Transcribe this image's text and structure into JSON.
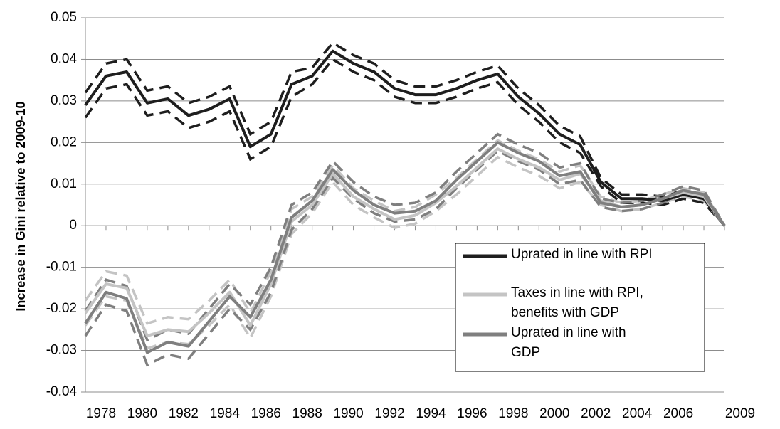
{
  "chart_data": {
    "type": "line",
    "y_label": "Increase in Gini relative to 2009-10",
    "categories": [
      1978,
      null,
      1980,
      null,
      1982,
      null,
      1984,
      null,
      1986,
      null,
      1988,
      null,
      1990,
      null,
      1992,
      null,
      1994,
      null,
      1996,
      null,
      1998,
      null,
      2000,
      null,
      2002,
      null,
      2004,
      null,
      2006,
      null,
      null,
      2009
    ],
    "ylim": [
      -0.04,
      0.05
    ],
    "yticks": [
      -0.04,
      -0.03,
      -0.02,
      -0.01,
      0,
      0.01,
      0.02,
      0.03,
      0.04,
      0.05
    ],
    "grid": true,
    "legend": "lower right",
    "series": [
      {
        "name": "Uprated in line with RPI",
        "color": "#1e1e1e",
        "values": [
          0.029,
          0.036,
          0.037,
          0.0295,
          0.0305,
          0.0265,
          0.028,
          0.0305,
          0.019,
          0.022,
          0.034,
          0.036,
          0.042,
          0.039,
          0.037,
          0.033,
          0.0315,
          0.0315,
          0.033,
          0.035,
          0.0365,
          0.031,
          0.027,
          0.022,
          0.0195,
          0.0105,
          0.0065,
          0.0065,
          0.006,
          0.0075,
          0.0065,
          0
        ],
        "lower": [
          0.026,
          0.033,
          0.034,
          0.0265,
          0.0275,
          0.0235,
          0.025,
          0.0275,
          0.016,
          0.019,
          0.031,
          0.034,
          0.04,
          0.037,
          0.035,
          0.031,
          0.0295,
          0.0295,
          0.031,
          0.033,
          0.0345,
          0.029,
          0.025,
          0.02,
          0.0175,
          0.0095,
          0.0055,
          0.0055,
          0.005,
          0.0065,
          0.0055,
          0
        ],
        "upper": [
          0.032,
          0.039,
          0.04,
          0.0325,
          0.0335,
          0.0295,
          0.031,
          0.0335,
          0.022,
          0.025,
          0.037,
          0.038,
          0.044,
          0.041,
          0.039,
          0.035,
          0.0335,
          0.0335,
          0.035,
          0.037,
          0.0385,
          0.033,
          0.029,
          0.024,
          0.0215,
          0.0115,
          0.0075,
          0.0075,
          0.007,
          0.0085,
          0.0075,
          0
        ]
      },
      {
        "name": "Taxes in line with RPI,\nbenefits with GDP",
        "color": "#c4c4c4",
        "values": [
          -0.021,
          -0.014,
          -0.015,
          -0.0265,
          -0.025,
          -0.0255,
          -0.021,
          -0.016,
          -0.024,
          -0.014,
          0.001,
          0.005,
          0.0125,
          0.007,
          0.004,
          0.0015,
          0.0025,
          0.0055,
          0.0095,
          0.014,
          0.0185,
          0.016,
          0.014,
          0.011,
          0.0125,
          0.006,
          0.0045,
          0.005,
          0.0065,
          0.008,
          0.007,
          0
        ],
        "lower": [
          -0.024,
          -0.017,
          -0.018,
          -0.0295,
          -0.028,
          -0.0285,
          -0.024,
          -0.019,
          -0.027,
          -0.017,
          -0.002,
          0.003,
          0.0105,
          0.005,
          0.002,
          -0.0005,
          0.0005,
          0.0035,
          0.0075,
          0.012,
          0.0165,
          0.014,
          0.012,
          0.009,
          0.0105,
          0.005,
          0.0035,
          0.004,
          0.0055,
          0.007,
          0.006,
          0
        ],
        "upper": [
          -0.018,
          -0.011,
          -0.012,
          -0.0235,
          -0.022,
          -0.0225,
          -0.018,
          -0.013,
          -0.021,
          -0.011,
          0.004,
          0.007,
          0.0145,
          0.009,
          0.006,
          0.0035,
          0.0045,
          0.0075,
          0.0115,
          0.016,
          0.0205,
          0.018,
          0.016,
          0.013,
          0.0145,
          0.007,
          0.0055,
          0.006,
          0.0075,
          0.009,
          0.008,
          0
        ]
      },
      {
        "name": "Uprated in line with\nGDP",
        "color": "#7f7f7f",
        "values": [
          -0.0235,
          -0.016,
          -0.0175,
          -0.0305,
          -0.028,
          -0.029,
          -0.023,
          -0.017,
          -0.022,
          -0.013,
          0.002,
          0.006,
          0.0135,
          0.0085,
          0.005,
          0.003,
          0.0035,
          0.006,
          0.011,
          0.0155,
          0.02,
          0.0175,
          0.0155,
          0.012,
          0.013,
          0.0055,
          0.0045,
          0.005,
          0.0065,
          0.0085,
          0.0075,
          0
        ],
        "lower": [
          -0.0265,
          -0.019,
          -0.0205,
          -0.0335,
          -0.031,
          -0.032,
          -0.026,
          -0.02,
          -0.025,
          -0.016,
          -0.001,
          0.004,
          0.0115,
          0.0065,
          0.003,
          0.001,
          0.0015,
          0.004,
          0.009,
          0.0135,
          0.018,
          0.0155,
          0.0135,
          0.01,
          0.011,
          0.0045,
          0.0035,
          0.004,
          0.0055,
          0.0075,
          0.0065,
          0
        ],
        "upper": [
          -0.0205,
          -0.013,
          -0.0145,
          -0.0275,
          -0.025,
          -0.026,
          -0.02,
          -0.014,
          -0.019,
          -0.01,
          0.005,
          0.008,
          0.0155,
          0.0105,
          0.007,
          0.005,
          0.0055,
          0.008,
          0.013,
          0.0175,
          0.022,
          0.0195,
          0.0175,
          0.014,
          0.015,
          0.0065,
          0.0055,
          0.006,
          0.0075,
          0.0095,
          0.0085,
          0
        ]
      }
    ]
  }
}
